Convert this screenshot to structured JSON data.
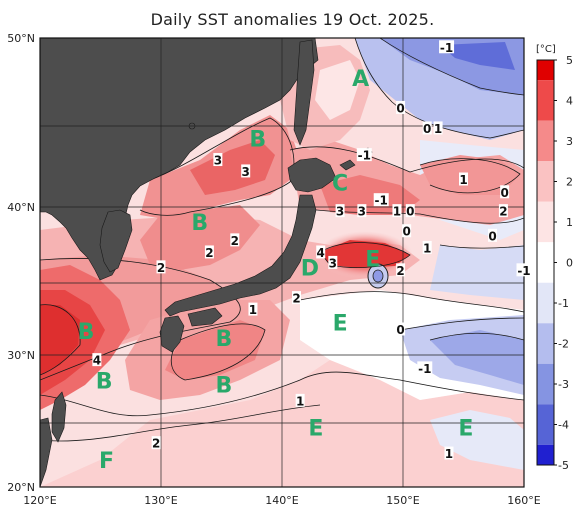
{
  "title": "Daily SST anomalies 19 Oct. 2025.",
  "colorbar": {
    "unit": "[°C]",
    "ticks": [
      "5",
      "4",
      "3",
      "2",
      "1",
      "0",
      "-1",
      "-2",
      "-3",
      "-4",
      "-5"
    ],
    "min": -5,
    "max": 5,
    "colors": [
      "#e00000",
      "#ee4a4a",
      "#f58a8a",
      "#fac2c2",
      "#fde4e4",
      "#ffffff",
      "#e2e6f7",
      "#b4bdee",
      "#8594e2",
      "#5664d6",
      "#2020d0"
    ]
  },
  "axes": {
    "lat_labels": [
      "50°N",
      "40°N",
      "30°N",
      "20°N"
    ],
    "lon_labels": [
      "120°E",
      "130°E",
      "140°E",
      "150°E",
      "160°E"
    ],
    "lat_range": [
      20,
      50
    ],
    "lon_range": [
      120,
      160
    ]
  },
  "region_letters": [
    {
      "text": "A",
      "lon": 146.5,
      "lat": 47.8
    },
    {
      "text": "B",
      "lon": 138.0,
      "lat": 44.3
    },
    {
      "text": "C",
      "lon": 144.8,
      "lat": 41.6
    },
    {
      "text": "B",
      "lon": 133.2,
      "lat": 39.1
    },
    {
      "text": "D",
      "lon": 142.3,
      "lat": 36.1
    },
    {
      "text": "E",
      "lon": 147.5,
      "lat": 36.7
    },
    {
      "text": "B",
      "lon": 123.8,
      "lat": 31.7
    },
    {
      "text": "B",
      "lon": 135.2,
      "lat": 31.2
    },
    {
      "text": "E",
      "lon": 144.8,
      "lat": 32.3
    },
    {
      "text": "B",
      "lon": 125.3,
      "lat": 28.1
    },
    {
      "text": "B",
      "lon": 135.2,
      "lat": 27.8
    },
    {
      "text": "E",
      "lon": 142.8,
      "lat": 24.6
    },
    {
      "text": "E",
      "lon": 155.2,
      "lat": 24.6
    },
    {
      "text": "F",
      "lon": 125.5,
      "lat": 22.1
    }
  ],
  "contour_labels": [
    {
      "text": "-1",
      "lon": 153.6,
      "lat": 49.5
    },
    {
      "text": "0",
      "lon": 149.8,
      "lat": 46.1
    },
    {
      "text": "0",
      "lon": 152.0,
      "lat": 44.9
    },
    {
      "text": "1",
      "lon": 152.9,
      "lat": 44.9
    },
    {
      "text": "-1",
      "lon": 146.8,
      "lat": 43.3
    },
    {
      "text": "3",
      "lon": 134.7,
      "lat": 43.0
    },
    {
      "text": "3",
      "lon": 137.0,
      "lat": 42.3
    },
    {
      "text": "1",
      "lon": 155.0,
      "lat": 41.8
    },
    {
      "text": "0",
      "lon": 158.4,
      "lat": 41.0
    },
    {
      "text": "-1",
      "lon": 148.2,
      "lat": 40.5
    },
    {
      "text": "3",
      "lon": 144.8,
      "lat": 39.8
    },
    {
      "text": "3",
      "lon": 146.6,
      "lat": 39.8
    },
    {
      "text": "1",
      "lon": 149.5,
      "lat": 39.8
    },
    {
      "text": "0",
      "lon": 150.6,
      "lat": 39.8
    },
    {
      "text": "2",
      "lon": 158.3,
      "lat": 39.8
    },
    {
      "text": "0",
      "lon": 150.3,
      "lat": 38.5
    },
    {
      "text": "0",
      "lon": 157.4,
      "lat": 38.2
    },
    {
      "text": "2",
      "lon": 136.1,
      "lat": 37.9
    },
    {
      "text": "2",
      "lon": 134.0,
      "lat": 37.1
    },
    {
      "text": "1",
      "lon": 152.0,
      "lat": 37.4
    },
    {
      "text": "4",
      "lon": 143.2,
      "lat": 37.1
    },
    {
      "text": "3",
      "lon": 144.2,
      "lat": 36.4
    },
    {
      "text": "2",
      "lon": 130.0,
      "lat": 36.1
    },
    {
      "text": "2",
      "lon": 149.8,
      "lat": 35.9
    },
    {
      "text": "-1",
      "lon": 160.0,
      "lat": 35.9
    },
    {
      "text": "2",
      "lon": 141.2,
      "lat": 34.0
    },
    {
      "text": "1",
      "lon": 137.6,
      "lat": 33.2
    },
    {
      "text": "0",
      "lon": 149.8,
      "lat": 31.8
    },
    {
      "text": "4",
      "lon": 124.7,
      "lat": 29.6
    },
    {
      "text": "-1",
      "lon": 151.8,
      "lat": 29.0
    },
    {
      "text": "1",
      "lon": 141.5,
      "lat": 26.6
    },
    {
      "text": "2",
      "lon": 129.6,
      "lat": 23.4
    },
    {
      "text": "1",
      "lon": 153.8,
      "lat": 22.6
    }
  ]
}
